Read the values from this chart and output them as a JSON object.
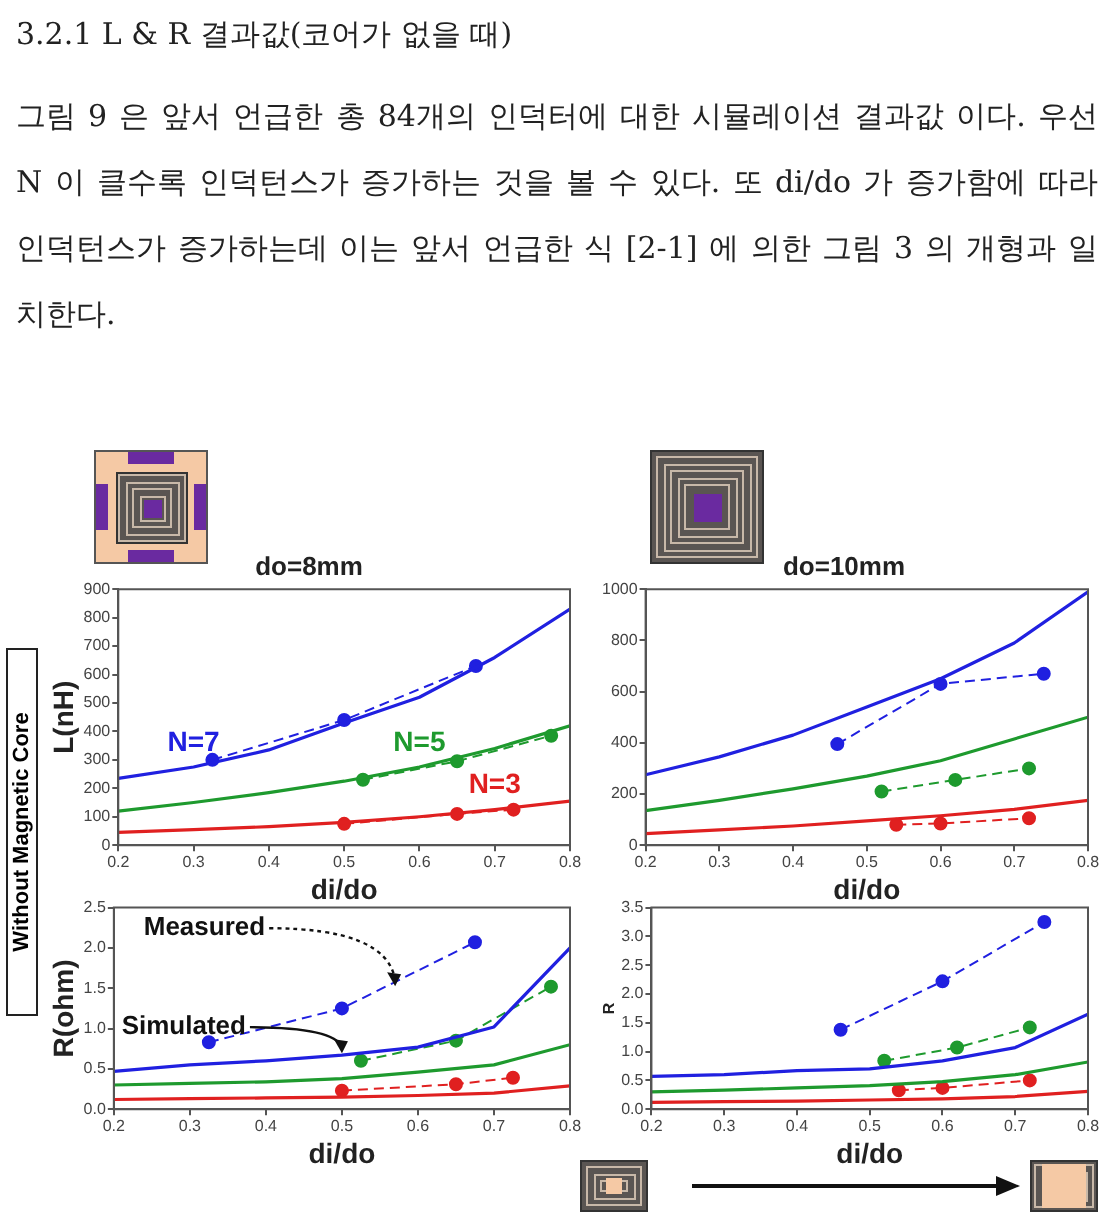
{
  "chart_data": [
    {
      "type": "other",
      "title": "3.2.1 L & R 결과값(코어가 없을 때)",
      "annotations": [
        "그림 9 은 앞서 언급한 총 84개의 인덕터에 대한 시뮬레이션 결과값 이다. 우선 N 이 클수록 인덕턴스가 증가하는 것을 볼 수 있다. 또 di/do 가 증가함에 따라 인덕턴스가 증가하는데 이는 앞서 언급한 식 [2-1] 에 의한 그림 3 의 개형과 일치한다."
      ]
    },
    {
      "type": "line",
      "title": "do=8mm",
      "xlabel": "di/do",
      "ylabel": "L(nH)",
      "xlim": [
        0.2,
        0.8
      ],
      "xticks": [
        0.2,
        0.3,
        0.4,
        0.5,
        0.6,
        0.7,
        0.8
      ],
      "ylim": [
        0,
        900
      ],
      "yticks": [
        0,
        100,
        200,
        300,
        400,
        500,
        600,
        700,
        800,
        900
      ],
      "annotations": [
        "Without Magnetic Core"
      ],
      "series": [
        {
          "name": "N=7",
          "color": "#2020e0",
          "marker": "none",
          "line_style": "solid",
          "x": [
            0.2,
            0.3,
            0.4,
            0.5,
            0.6,
            0.7,
            0.8
          ],
          "values": [
            235,
            275,
            335,
            430,
            520,
            660,
            830
          ]
        },
        {
          "name": "N=5",
          "color": "#1e9a2e",
          "marker": "none",
          "line_style": "solid",
          "x": [
            0.2,
            0.3,
            0.4,
            0.5,
            0.6,
            0.7,
            0.8
          ],
          "values": [
            120,
            150,
            185,
            225,
            275,
            340,
            420
          ]
        },
        {
          "name": "N=3",
          "color": "#e02020",
          "marker": "none",
          "line_style": "solid",
          "x": [
            0.2,
            0.3,
            0.4,
            0.5,
            0.6,
            0.7,
            0.8
          ],
          "values": [
            45,
            55,
            65,
            80,
            100,
            125,
            155
          ]
        },
        {
          "color": "#2020e0",
          "marker": "circle",
          "line_style": "dashed",
          "x": [
            0.325,
            0.5,
            0.675
          ],
          "values": [
            300,
            440,
            630
          ]
        },
        {
          "color": "#1e9a2e",
          "marker": "circle",
          "line_style": "dashed",
          "x": [
            0.525,
            0.65,
            0.775
          ],
          "values": [
            230,
            295,
            385
          ]
        },
        {
          "color": "#e02020",
          "marker": "circle",
          "line_style": "dashed",
          "x": [
            0.5,
            0.65,
            0.725
          ],
          "values": [
            75,
            110,
            125
          ]
        }
      ]
    },
    {
      "type": "line",
      "title": "do=10mm",
      "xlabel": "di/do",
      "xlim": [
        0.2,
        0.8
      ],
      "xticks": [
        0.2,
        0.3,
        0.4,
        0.5,
        0.6,
        0.7,
        0.8
      ],
      "ylim": [
        0,
        1000
      ],
      "yticks": [
        0,
        200,
        400,
        600,
        800,
        1000
      ],
      "series": [
        {
          "color": "#2020e0",
          "marker": "none",
          "line_style": "solid",
          "x": [
            0.2,
            0.3,
            0.4,
            0.5,
            0.6,
            0.7,
            0.8
          ],
          "values": [
            275,
            345,
            430,
            540,
            650,
            790,
            990
          ]
        },
        {
          "color": "#1e9a2e",
          "marker": "none",
          "line_style": "solid",
          "x": [
            0.2,
            0.3,
            0.4,
            0.5,
            0.6,
            0.7,
            0.8
          ],
          "values": [
            135,
            175,
            220,
            270,
            330,
            415,
            500
          ]
        },
        {
          "color": "#e02020",
          "marker": "none",
          "line_style": "solid",
          "x": [
            0.2,
            0.3,
            0.4,
            0.5,
            0.6,
            0.7,
            0.8
          ],
          "values": [
            45,
            60,
            75,
            95,
            115,
            140,
            175
          ]
        },
        {
          "color": "#2020e0",
          "marker": "circle",
          "line_style": "dashed",
          "x": [
            0.46,
            0.6,
            0.74
          ],
          "values": [
            395,
            630,
            670
          ]
        },
        {
          "color": "#1e9a2e",
          "marker": "circle",
          "line_style": "dashed",
          "x": [
            0.52,
            0.62,
            0.72
          ],
          "values": [
            210,
            255,
            300
          ]
        },
        {
          "color": "#e02020",
          "marker": "circle",
          "line_style": "dashed",
          "x": [
            0.54,
            0.6,
            0.72
          ],
          "values": [
            80,
            85,
            105
          ]
        }
      ]
    },
    {
      "type": "line",
      "xlabel": "di/do",
      "ylabel": "R(ohm)",
      "xlim": [
        0.2,
        0.8
      ],
      "xticks": [
        0.2,
        0.3,
        0.4,
        0.5,
        0.6,
        0.7,
        0.8
      ],
      "ylim": [
        0,
        2.5
      ],
      "yticks": [
        {
          "value": 0,
          "label": "0.0"
        },
        0.5,
        {
          "value": 1,
          "label": "1.0"
        },
        1.5,
        {
          "value": 2,
          "label": "2.0"
        },
        2.5
      ],
      "annotations": [
        {
          "text": "Measured",
          "x": 0.57,
          "y": 1.5
        },
        {
          "text": "Simulated",
          "x": 0.5,
          "y": 0.67
        }
      ],
      "series": [
        {
          "color": "#2020e0",
          "marker": "none",
          "line_style": "solid",
          "x": [
            0.2,
            0.3,
            0.4,
            0.5,
            0.6,
            0.7,
            0.8
          ],
          "values": [
            0.47,
            0.55,
            0.6,
            0.67,
            0.77,
            1.02,
            2.0
          ]
        },
        {
          "color": "#1e9a2e",
          "marker": "none",
          "line_style": "solid",
          "x": [
            0.2,
            0.3,
            0.4,
            0.5,
            0.6,
            0.7,
            0.8
          ],
          "values": [
            0.3,
            0.32,
            0.34,
            0.38,
            0.46,
            0.55,
            0.8
          ]
        },
        {
          "color": "#e02020",
          "marker": "none",
          "line_style": "solid",
          "x": [
            0.2,
            0.3,
            0.4,
            0.5,
            0.6,
            0.7,
            0.8
          ],
          "values": [
            0.12,
            0.13,
            0.14,
            0.15,
            0.17,
            0.2,
            0.29
          ]
        },
        {
          "color": "#2020e0",
          "marker": "circle",
          "line_style": "dashed",
          "x": [
            0.325,
            0.5,
            0.675
          ],
          "values": [
            0.83,
            1.25,
            2.07
          ]
        },
        {
          "color": "#1e9a2e",
          "marker": "circle",
          "line_style": "dashed",
          "x": [
            0.525,
            0.65,
            0.775
          ],
          "values": [
            0.6,
            0.85,
            1.52
          ]
        },
        {
          "color": "#e02020",
          "marker": "circle",
          "line_style": "dashed",
          "x": [
            0.5,
            0.65,
            0.725
          ],
          "values": [
            0.23,
            0.31,
            0.39
          ]
        }
      ]
    },
    {
      "type": "line",
      "xlabel": "di/do",
      "ylabel": "R",
      "xlim": [
        0.2,
        0.8
      ],
      "xticks": [
        0.2,
        0.3,
        0.4,
        0.5,
        0.6,
        0.7,
        0.8
      ],
      "ylim": [
        0,
        3.5
      ],
      "yticks": [
        {
          "value": 0,
          "label": "0.0"
        },
        0.5,
        {
          "value": 1,
          "label": "1.0"
        },
        1.5,
        {
          "value": 2,
          "label": "2.0"
        },
        2.5,
        {
          "value": 3,
          "label": "3.0"
        },
        3.5
      ],
      "series": [
        {
          "color": "#2020e0",
          "marker": "none",
          "line_style": "solid",
          "x": [
            0.2,
            0.3,
            0.4,
            0.5,
            0.6,
            0.7,
            0.8
          ],
          "values": [
            0.57,
            0.6,
            0.67,
            0.7,
            0.84,
            1.07,
            1.65
          ]
        },
        {
          "color": "#1e9a2e",
          "marker": "none",
          "line_style": "solid",
          "x": [
            0.2,
            0.3,
            0.4,
            0.5,
            0.6,
            0.7,
            0.8
          ],
          "values": [
            0.3,
            0.33,
            0.37,
            0.41,
            0.48,
            0.6,
            0.82
          ]
        },
        {
          "color": "#e02020",
          "marker": "none",
          "line_style": "solid",
          "x": [
            0.2,
            0.3,
            0.4,
            0.5,
            0.6,
            0.7,
            0.8
          ],
          "values": [
            0.12,
            0.13,
            0.14,
            0.16,
            0.18,
            0.22,
            0.31
          ]
        },
        {
          "color": "#2020e0",
          "marker": "circle",
          "line_style": "dashed",
          "x": [
            0.46,
            0.6,
            0.74
          ],
          "values": [
            1.38,
            2.22,
            3.25
          ]
        },
        {
          "color": "#1e9a2e",
          "marker": "circle",
          "line_style": "dashed",
          "x": [
            0.52,
            0.62,
            0.72
          ],
          "values": [
            0.84,
            1.07,
            1.42
          ]
        },
        {
          "color": "#e02020",
          "marker": "circle",
          "line_style": "dashed",
          "x": [
            0.54,
            0.6,
            0.72
          ],
          "values": [
            0.33,
            0.37,
            0.5
          ]
        }
      ]
    }
  ]
}
